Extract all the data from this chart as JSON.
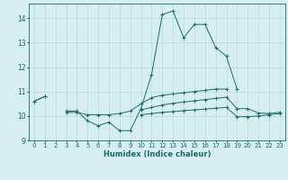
{
  "xlabel": "Humidex (Indice chaleur)",
  "background_color": "#d6eef0",
  "grid_color": "#b8d8dc",
  "line_color": "#1a6b6b",
  "xlim": [
    -0.5,
    23.5
  ],
  "ylim": [
    9,
    14.6
  ],
  "yticks": [
    9,
    10,
    11,
    12,
    13,
    14
  ],
  "xticks": [
    0,
    1,
    2,
    3,
    4,
    5,
    6,
    7,
    8,
    9,
    10,
    11,
    12,
    13,
    14,
    15,
    16,
    17,
    18,
    19,
    20,
    21,
    22,
    23
  ],
  "series": [
    [
      10.6,
      10.8,
      null,
      null,
      null,
      null,
      null,
      null,
      null,
      null,
      null,
      null,
      null,
      null,
      null,
      null,
      null,
      null,
      null,
      null,
      null,
      null,
      null,
      null
    ],
    [
      null,
      null,
      null,
      10.2,
      10.2,
      9.8,
      9.6,
      9.75,
      9.4,
      9.4,
      10.3,
      11.7,
      14.15,
      14.3,
      13.2,
      13.75,
      13.75,
      12.8,
      12.45,
      11.1,
      null,
      null,
      null,
      null
    ],
    [
      10.6,
      10.8,
      null,
      null,
      null,
      null,
      null,
      null,
      null,
      null,
      null,
      null,
      null,
      null,
      null,
      null,
      null,
      null,
      null,
      null,
      null,
      null,
      null,
      null
    ],
    [
      null,
      null,
      null,
      10.15,
      10.15,
      10.05,
      10.05,
      10.05,
      10.1,
      10.2,
      10.5,
      10.75,
      10.85,
      10.9,
      10.95,
      11.0,
      11.05,
      11.1,
      11.1,
      null,
      null,
      null,
      null,
      null
    ],
    [
      null,
      null,
      null,
      null,
      null,
      null,
      null,
      null,
      null,
      null,
      10.25,
      10.35,
      10.45,
      10.52,
      10.57,
      10.62,
      10.67,
      10.72,
      10.77,
      10.3,
      10.3,
      10.12,
      10.1,
      10.15
    ],
    [
      null,
      null,
      null,
      null,
      null,
      null,
      null,
      null,
      null,
      null,
      10.05,
      10.1,
      10.15,
      10.18,
      10.22,
      10.25,
      10.28,
      10.32,
      10.35,
      9.97,
      9.97,
      10.0,
      10.05,
      10.1
    ]
  ]
}
